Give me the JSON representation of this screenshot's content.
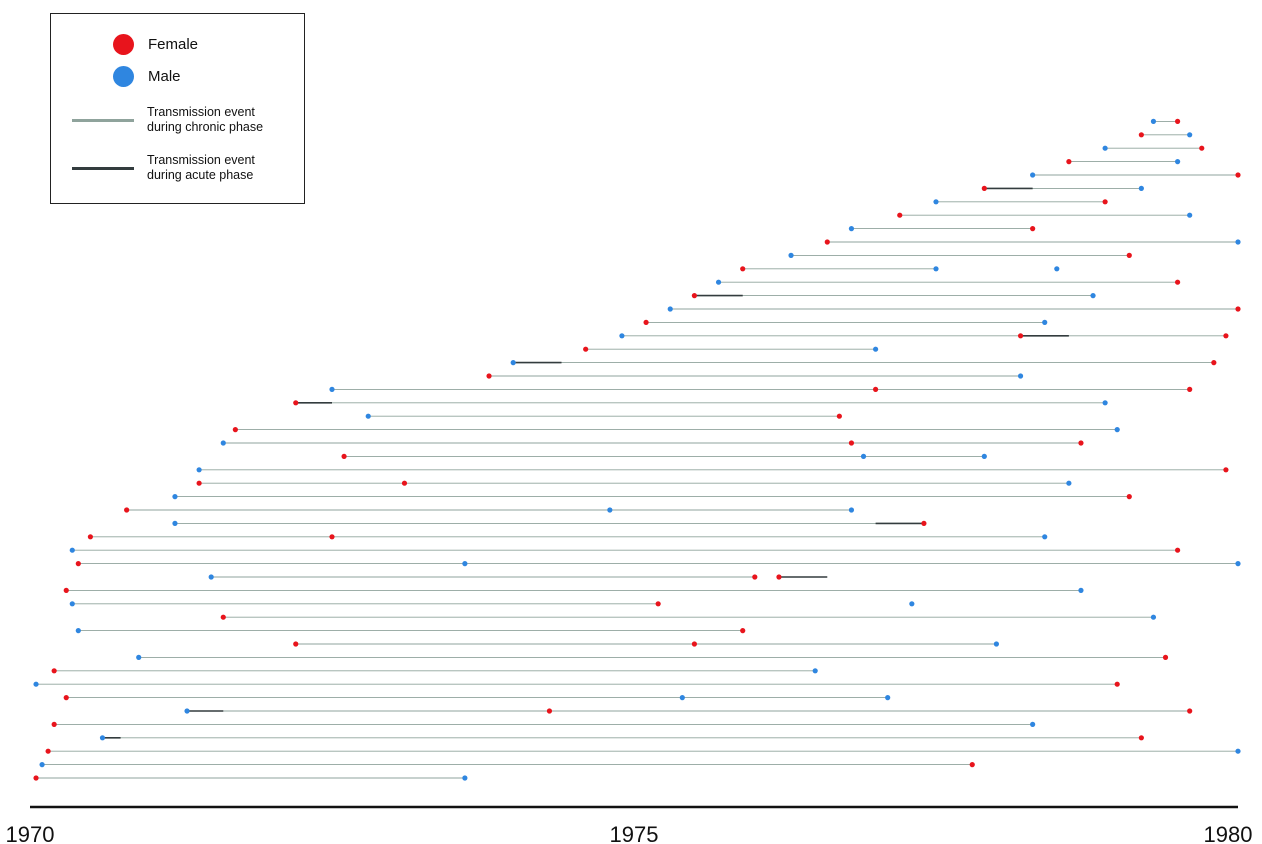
{
  "chart_data": {
    "type": "transmission-tree",
    "xlim": [
      1970,
      1980
    ],
    "xticks": [
      1970,
      1975,
      1980
    ],
    "ylim": [
      0,
      100
    ],
    "series": [
      {
        "name": "Female",
        "color": "#e8141c",
        "x": [
          1970.05,
          1970.15,
          1970.2,
          1970.3,
          1970.2,
          1972.2,
          1971.6,
          1970.3,
          1970.4,
          1970.5,
          1970.8,
          1971.4,
          1972.6,
          1971.7,
          1972.2,
          1973.8,
          1974.6,
          1975.1,
          1975.5,
          1975.9,
          1976.6,
          1977.2,
          1977.9,
          1978.6,
          1979.2,
          1977.8,
          1979.2,
          1979.6,
          1979.0,
          1979.4,
          1975.9,
          1975.2,
          1976.0,
          1979.5,
          1977.4,
          1979.1,
          1979.9,
          1978.7,
          1976.7,
          1979.6,
          1979.8,
          1979.9,
          1980,
          1979.5,
          1979.1,
          1978.3,
          1978.9,
          1980,
          1979.7,
          1979.5,
          1974.3,
          1976.2,
          1973.1,
          1977.0,
          1975.5,
          1978.2,
          1972.5,
          1976.8
        ],
        "y": [
          0,
          4,
          8,
          12,
          16,
          20,
          24,
          28,
          32,
          36,
          40,
          44,
          48,
          52,
          56,
          60,
          64,
          68,
          72,
          76,
          80,
          84,
          88,
          92,
          96,
          2,
          6,
          10,
          14,
          18,
          22,
          26,
          30,
          34,
          38,
          42,
          46,
          50,
          54,
          58,
          62,
          66,
          70,
          74,
          78,
          82,
          86,
          90,
          94,
          98,
          10,
          30,
          44,
          58,
          20,
          66,
          36,
          50
        ]
      },
      {
        "name": "Male",
        "color": "#2f86e0",
        "x": [
          1970.1,
          1970.6,
          1971.3,
          1970.05,
          1970.9,
          1970.4,
          1970.35,
          1971.5,
          1970.35,
          1971.2,
          1971.2,
          1971.4,
          1971.6,
          1972.8,
          1972.5,
          1974.0,
          1974.9,
          1975.3,
          1975.7,
          1976.3,
          1976.8,
          1977.5,
          1978.3,
          1978.9,
          1979.3,
          1973.6,
          1980,
          1978.3,
          1977.1,
          1976.5,
          1978.0,
          1979.3,
          1978.7,
          1980,
          1978.4,
          1976.8,
          1978.6,
          1977.9,
          1979.0,
          1978.9,
          1978.2,
          1977.0,
          1978.4,
          1978.8,
          1977.5,
          1980,
          1979.6,
          1979.2,
          1979.5,
          1979.6,
          1975.4,
          1977.3,
          1974.8,
          1976.9,
          1973.6,
          1978.5
        ],
        "y": [
          2,
          6,
          10,
          14,
          18,
          22,
          26,
          30,
          34,
          38,
          42,
          46,
          50,
          54,
          58,
          62,
          66,
          70,
          74,
          78,
          82,
          86,
          90,
          94,
          98,
          0,
          4,
          8,
          12,
          16,
          20,
          24,
          28,
          32,
          36,
          40,
          44,
          48,
          52,
          56,
          60,
          64,
          68,
          72,
          76,
          80,
          84,
          88,
          92,
          96,
          12,
          26,
          40,
          48,
          32,
          76
        ]
      }
    ],
    "lineages": {
      "name": "Transmission event during chronic phase",
      "color": "#8fa39c",
      "x0": [
        1970.05,
        1970.1,
        1970.15,
        1970.6,
        1970.2,
        1971.3,
        1970.3,
        1970.05,
        1970.2,
        1970.9,
        1972.2,
        1970.4,
        1971.6,
        1970.35,
        1970.3,
        1971.5,
        1970.4,
        1970.35,
        1970.5,
        1971.2,
        1970.8,
        1971.2,
        1971.4,
        1971.4,
        1972.6,
        1971.6,
        1971.7,
        1972.8,
        1972.2,
        1972.5,
        1973.8,
        1974.0,
        1974.6,
        1974.9,
        1975.1,
        1975.3,
        1975.5,
        1975.7,
        1975.9,
        1976.3,
        1976.6,
        1976.8,
        1977.2,
        1977.5,
        1977.9,
        1978.3,
        1978.6,
        1978.9,
        1979.2,
        1979.3
      ],
      "x1": [
        1973.6,
        1977.8,
        1980,
        1979.2,
        1978.3,
        1979.6,
        1977.1,
        1979.0,
        1976.5,
        1979.4,
        1978.0,
        1975.9,
        1979.3,
        1975.2,
        1978.7,
        1976.0,
        1980,
        1979.5,
        1978.4,
        1977.4,
        1976.8,
        1979.1,
        1978.6,
        1979.9,
        1977.9,
        1978.7,
        1979.0,
        1976.7,
        1978.9,
        1979.6,
        1978.2,
        1979.8,
        1977.0,
        1979.9,
        1978.4,
        1980,
        1978.8,
        1979.5,
        1977.5,
        1979.1,
        1980,
        1978.3,
        1979.6,
        1978.9,
        1979.2,
        1980,
        1979.5,
        1979.7,
        1979.6,
        1979.5
      ],
      "y": [
        0,
        2,
        4,
        6,
        8,
        10,
        12,
        14,
        16,
        18,
        20,
        22,
        24,
        26,
        28,
        30,
        32,
        34,
        36,
        38,
        40,
        42,
        44,
        46,
        48,
        50,
        52,
        54,
        56,
        58,
        60,
        62,
        64,
        66,
        68,
        70,
        72,
        74,
        76,
        78,
        80,
        82,
        84,
        86,
        88,
        90,
        92,
        94,
        96,
        98
      ]
    },
    "acute": {
      "name": "Transmission event during acute phase",
      "color": "#333c3e",
      "x0": [
        1970.6,
        1977.0,
        1974.0,
        1975.5,
        1977.9,
        1972.2,
        1976.2,
        1978.2,
        1971.3
      ],
      "x1": [
        1970.75,
        1977.4,
        1974.4,
        1975.9,
        1978.3,
        1972.5,
        1976.6,
        1978.6,
        1971.6
      ],
      "y": [
        6,
        38,
        62,
        72,
        88,
        56,
        30,
        66,
        10
      ]
    }
  }
}
